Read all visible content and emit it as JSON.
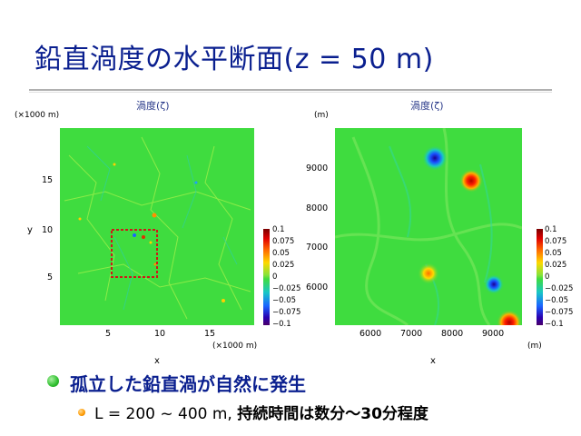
{
  "title": "鉛直渦度の水平断面(z = 50 m)",
  "left_panel": {
    "title": "渦度(ζ)",
    "y_unit": "(×1000 m)",
    "x_unit": "(×1000 m)",
    "x_label": "x",
    "y_label": "y",
    "x_ticks": [
      "5",
      "10",
      "15"
    ],
    "y_ticks": [
      "15",
      "10",
      "5"
    ]
  },
  "right_panel": {
    "title": "渦度(ζ)",
    "y_unit": "(m)",
    "x_unit": "(m)",
    "x_label": "x",
    "x_ticks": [
      "6000",
      "7000",
      "8000",
      "9000"
    ],
    "y_ticks": [
      "9000",
      "8000",
      "7000",
      "6000"
    ]
  },
  "colorbar_labels": [
    "0.1",
    "0.075",
    "0.05",
    "0.025",
    "0",
    "−0.025",
    "−0.05",
    "−0.075",
    "−0.1"
  ],
  "colors": {
    "title": "#0a1f8f",
    "bullet1": "#2fbf2f",
    "bullet2": "#ff9a00",
    "zoom_box": "#d01818"
  },
  "bullets": {
    "level1": "孤立した鉛直渦が自然に発生",
    "level2_prefix": "L = 200 ~ 400 m,",
    "level2_strong": "持続時間は数分～30分程度"
  }
}
